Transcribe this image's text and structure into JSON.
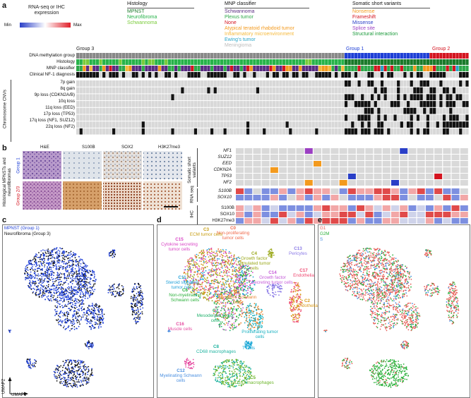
{
  "panel_labels": {
    "a": "a",
    "b": "b",
    "c": "c",
    "d": "d",
    "e": "e"
  },
  "expression_legend": {
    "title": "RNA-seq or IHC expression",
    "min": "Min",
    "max": "Max"
  },
  "histology_legend": {
    "title": "Histology",
    "items": [
      {
        "label": "MPNST",
        "color": "#1a7a2a"
      },
      {
        "label": "Neurofibroma",
        "color": "#27b34a"
      },
      {
        "label": "Schwannoma",
        "color": "#7acb3a"
      }
    ]
  },
  "mnp_legend": {
    "title": "MNP classifier",
    "items": [
      {
        "label": "Schwannoma",
        "color": "#5a2d82"
      },
      {
        "label": "Plexus tumor",
        "color": "#2ea84a"
      },
      {
        "label": "None",
        "color": "#d4141f"
      },
      {
        "label": "Atypical teratoid rhabdoid tumor",
        "color": "#f39a1e"
      },
      {
        "label": "Inflammatory microenvironment",
        "color": "#f6b93b"
      },
      {
        "label": "Ewing's tumor",
        "color": "#2aa6c9"
      },
      {
        "label": "Meningioma",
        "color": "#bdbdbd"
      }
    ]
  },
  "variant_legend": {
    "title": "Somatic short variants",
    "items": [
      {
        "label": "Nonsense",
        "color": "#f39a1e"
      },
      {
        "label": "Frameshift",
        "color": "#d4141f"
      },
      {
        "label": "Missense",
        "color": "#2a3fc7"
      },
      {
        "label": "Splice site",
        "color": "#9b3fc2"
      },
      {
        "label": "Structural interaction",
        "color": "#1a9a3a"
      }
    ]
  },
  "group_labels": {
    "group3": "Group 3",
    "group1": "Group 1",
    "group2": "Group 2"
  },
  "group_colors": {
    "group1": "#1e3fd6",
    "group2": "#d4141f",
    "group3": "#888888"
  },
  "heatmap_rows": [
    "DNA methylation group",
    "Histology",
    "MNP classifier",
    "Clinical NF-1 diagnosis"
  ],
  "cnv_axis_label": "Chromosome CNVs",
  "cnv_rows": [
    "7p gain",
    "8q gain",
    "9p loss (CDKN2A/B)",
    "10q loss",
    "11q loss (EED)",
    "17p loss (TP53)",
    "17q loss (NF1, SUZ12)",
    "22q loss (NF2)"
  ],
  "histology_panel": {
    "columns": [
      "H&E",
      "S100B",
      "SOX2",
      "H3K27me3"
    ],
    "side_label": "Histological MPNSTs and neurofibromas",
    "groups": [
      "Group 1",
      "Group 2/3"
    ]
  },
  "variants_axis_label": "Somatic short variants",
  "variant_genes": [
    "NF1",
    "SUZ12",
    "EED",
    "CDKN2A",
    "TP53",
    "NF2"
  ],
  "rnaseq_axis_label": "RNA seq",
  "rnaseq_rows": [
    "S100B",
    "SOX10"
  ],
  "ihc_axis_label": "IHC",
  "ihc_rows": [
    "S100B",
    "SOX10",
    "H3K27me3"
  ],
  "umap_c": {
    "legend": [
      {
        "label": "MPNST (Group 1)",
        "color": "#1e3fd6"
      },
      {
        "label": "Neurofibroma (Group 3)",
        "color": "#111111"
      }
    ],
    "x_axis": "UMAP1",
    "y_axis": "UMAP2"
  },
  "umap_d_clusters": [
    {
      "id": "C0",
      "name": "Non-proliferating tumor cells",
      "color": "#f06a4b"
    },
    {
      "id": "C1",
      "name": "Immature Schwann cells",
      "color": "#e8812a"
    },
    {
      "id": "C2",
      "name": "Endothelia",
      "color": "#d99a1a"
    },
    {
      "id": "C3",
      "name": "ECM tumor cells",
      "color": "#c79d12"
    },
    {
      "id": "C4",
      "name": "Growth factor stimulated tumor cells",
      "color": "#9aa81a"
    },
    {
      "id": "C5",
      "name": "CD163 macrophages",
      "color": "#6cb52a"
    },
    {
      "id": "C6",
      "name": "Non-myelinating Schwann cells",
      "color": "#2ab03a"
    },
    {
      "id": "C7",
      "name": "Mesodermal tumor cells",
      "color": "#1fb06a"
    },
    {
      "id": "C8",
      "name": "CD68 macrophages",
      "color": "#1fb3a0"
    },
    {
      "id": "C9",
      "name": "Proliferating tumor cells",
      "color": "#17b0c0"
    },
    {
      "id": "C10",
      "name": "T cells",
      "color": "#1aa7d6"
    },
    {
      "id": "C11",
      "name": "Steroid signaling tumor cells",
      "color": "#1e9fd8"
    },
    {
      "id": "C12",
      "name": "Myelinating Schwann cells",
      "color": "#4a8fe0"
    },
    {
      "id": "C13",
      "name": "Pericytes",
      "color": "#8a7ae6"
    },
    {
      "id": "C14",
      "name": "Growth factor secreting tumor cells",
      "color": "#c45ad8"
    },
    {
      "id": "C15",
      "name": "Cytokine secreting tumor cells",
      "color": "#d946c6"
    },
    {
      "id": "C16",
      "name": "Muscle cells",
      "color": "#e54aa0"
    },
    {
      "id": "C17",
      "name": "Endothelia",
      "color": "#ef4a72"
    }
  ],
  "umap_e": {
    "legend": [
      {
        "label": "G1",
        "color": "#e8605a"
      },
      {
        "label": "G2M",
        "color": "#2ab03a"
      },
      {
        "label": "S",
        "color": "#4a8fe0"
      }
    ]
  }
}
